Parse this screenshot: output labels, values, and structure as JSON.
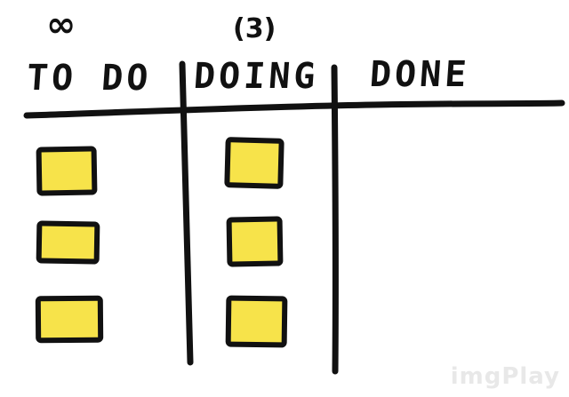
{
  "board": {
    "columns": [
      {
        "title": "TO DO",
        "wip_limit": "∞",
        "card_count": 3
      },
      {
        "title": "DOING",
        "wip_limit": "(3)",
        "card_count": 3
      },
      {
        "title": "DONE",
        "wip_limit": "",
        "card_count": 0
      }
    ],
    "card_color": "#f7e34a",
    "ink_color": "#111111"
  },
  "watermark": "imgPlay"
}
